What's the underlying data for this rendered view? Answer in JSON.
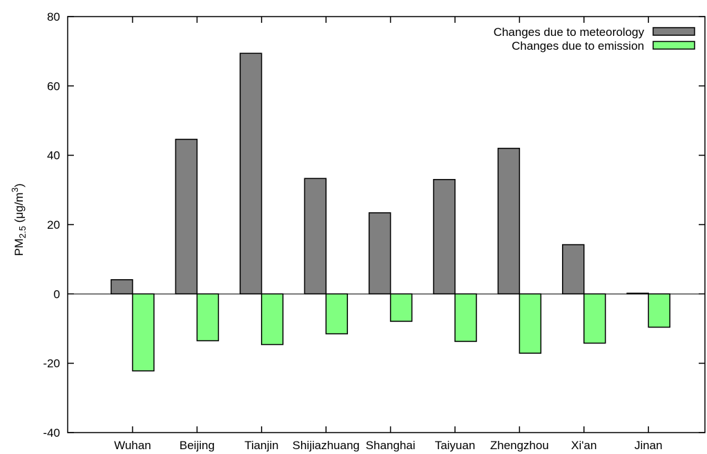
{
  "chart_data": {
    "type": "bar",
    "categories": [
      "Wuhan",
      "Beijing",
      "Tianjin",
      "Shijiazhuang",
      "Shanghai",
      "Taiyuan",
      "Zhengzhou",
      "Xi'an",
      "Jinan"
    ],
    "series": [
      {
        "name": "Changes due to meteorology",
        "color": "#808080",
        "values": [
          4.1,
          44.6,
          69.4,
          33.3,
          23.4,
          33.0,
          42.0,
          14.2,
          0.2
        ]
      },
      {
        "name": "Changes due to emission",
        "color": "#80ff80",
        "values": [
          -22.2,
          -13.5,
          -14.6,
          -11.5,
          -7.9,
          -13.7,
          -17.1,
          -14.2,
          -9.6
        ]
      }
    ],
    "ylim": [
      -40,
      80
    ],
    "yticks": [
      -40,
      -20,
      0,
      20,
      40,
      60,
      80
    ],
    "ylabel": {
      "prefix": "PM",
      "subscript": "2.5",
      "units_open": " (μg/m",
      "superscript": "3",
      "units_close": ")"
    },
    "grid": false,
    "legend_position": "top-right"
  }
}
